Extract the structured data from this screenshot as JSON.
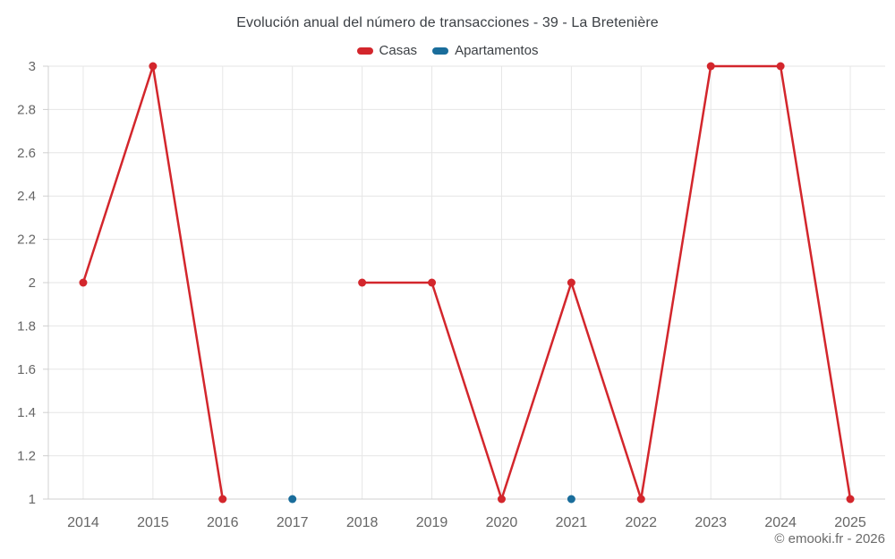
{
  "title": "Evolución anual del número de transacciones - 39 - La Bretenière",
  "footer": "© emooki.fr - 2026",
  "colors": {
    "casas": "#d3262c",
    "apartamentos": "#1a6d9b",
    "grid": "#e6e6e6",
    "axis": "#d0d0d0",
    "tick_label": "#666666",
    "title_text": "#3b3f44",
    "footer_text": "#6b6b6b"
  },
  "chart_data": {
    "type": "line",
    "title": "Evolución anual del número de transacciones - 39 - La Bretenière",
    "xlabel": "",
    "ylabel": "",
    "categories": [
      "2014",
      "2015",
      "2016",
      "2017",
      "2018",
      "2019",
      "2020",
      "2021",
      "2022",
      "2023",
      "2024",
      "2025"
    ],
    "series": [
      {
        "name": "Casas",
        "color": "#d3262c",
        "values": [
          2,
          3,
          1,
          null,
          2,
          2,
          1,
          2,
          1,
          3,
          3,
          1
        ]
      },
      {
        "name": "Apartamentos",
        "color": "#1a6d9b",
        "values": [
          null,
          null,
          null,
          1,
          null,
          null,
          null,
          1,
          null,
          null,
          null,
          null
        ]
      }
    ],
    "ylim": [
      1,
      3
    ],
    "ytick_step": 0.2,
    "ytick_labels": [
      "1",
      "1.2",
      "1.4",
      "1.6",
      "1.8",
      "2",
      "2.2",
      "2.4",
      "2.6",
      "2.8",
      "3"
    ],
    "grid": true,
    "legend_position": "top"
  }
}
